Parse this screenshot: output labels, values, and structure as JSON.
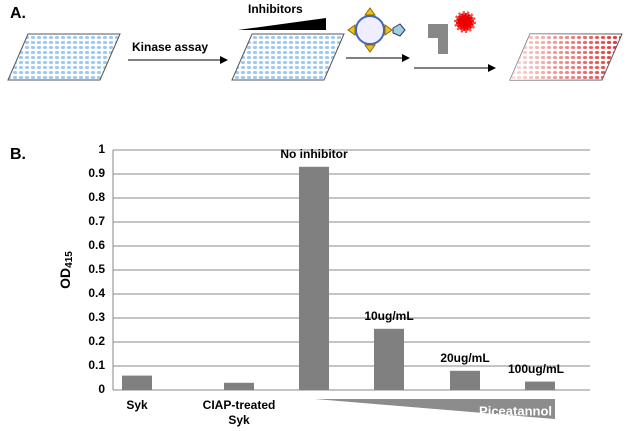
{
  "panel_a": {
    "label": "A.",
    "step_1": "Kinase assay",
    "step_2": "Inhibitors"
  },
  "chart_data": {
    "type": "bar",
    "panel_label": "B.",
    "ylabel": "OD",
    "ylabel_sub": "415",
    "categories": [
      "Syk",
      "CIAP-treated Syk",
      null,
      null,
      null,
      null
    ],
    "values": [
      0.06,
      0.03,
      0.93,
      0.255,
      0.08,
      0.035
    ],
    "color": "#808080",
    "annotations": [
      "No inhibitor",
      "10ug/mL",
      "20ug/mL",
      "100ug/mL"
    ],
    "gradient_label": "Piceatannol",
    "ylim": [
      0,
      1
    ],
    "yticks": [
      0,
      0.1,
      0.2,
      0.3,
      0.4,
      0.5,
      0.6,
      0.7,
      0.8,
      0.9,
      1
    ],
    "grid": true
  }
}
